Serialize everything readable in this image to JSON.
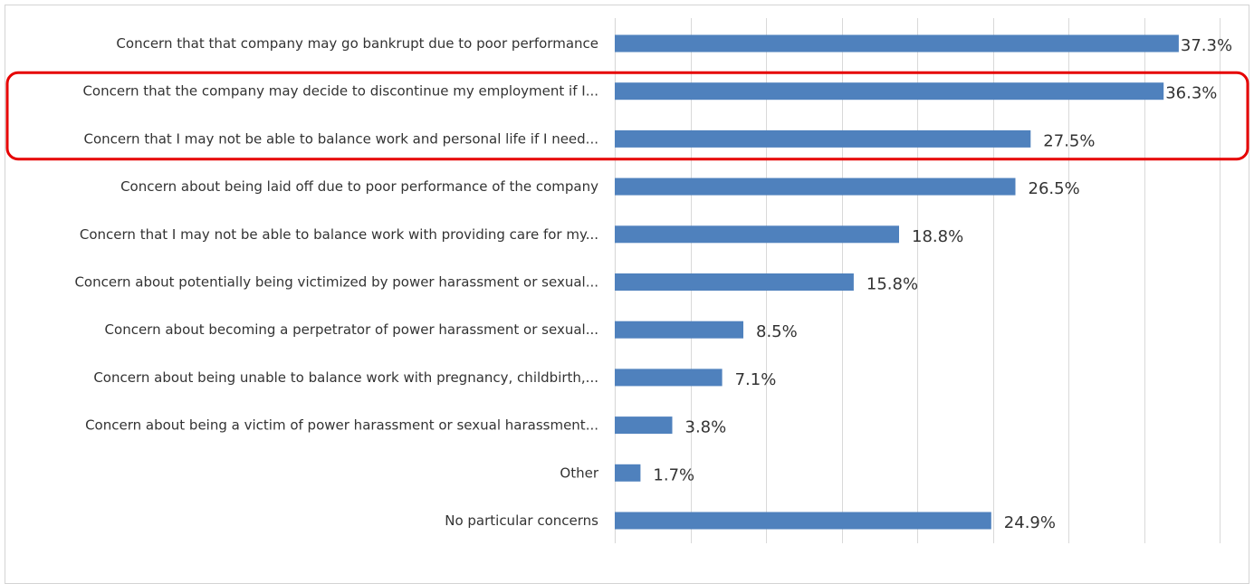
{
  "chart_data": {
    "type": "bar",
    "orientation": "horizontal",
    "categories": [
      "Concern that that company may go bankrupt due to poor performance",
      "Concern that the company may decide to discontinue my employment if I...",
      "Concern that I may not be able to balance work and personal life if I need...",
      "Concern about being laid off due to poor performance of the company",
      "Concern that I may not be able to balance work with providing care for my...",
      "Concern about potentially being victimized by power harassment or sexual...",
      "Concern about becoming a perpetrator of power harassment or sexual...",
      "Concern about being unable to balance work with pregnancy, childbirth,...",
      "Concern about being a victim of power harassment or sexual harassment...",
      "Other",
      "No particular concerns"
    ],
    "values": [
      37.3,
      36.3,
      27.5,
      26.5,
      18.8,
      15.8,
      8.5,
      7.1,
      3.8,
      1.7,
      24.9
    ],
    "value_labels": [
      "37.3%",
      "36.3%",
      "27.5%",
      "26.5%",
      "18.8%",
      "15.8%",
      "8.5%",
      "7.1%",
      "3.8%",
      "1.7%",
      "24.9%"
    ],
    "xlim": [
      0,
      40
    ],
    "grid": true,
    "highlight": {
      "categories": [
        1,
        2
      ],
      "color": "#e60000"
    },
    "colors": {
      "bar": "#4f81bd",
      "gridline": "#d9d9d9",
      "text": "#333333"
    }
  }
}
